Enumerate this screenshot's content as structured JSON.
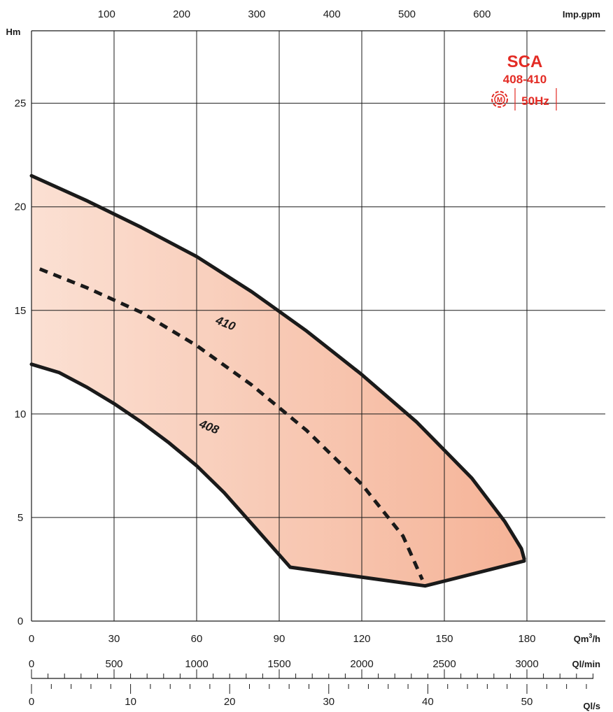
{
  "chart_data": {
    "type": "area",
    "ylabel": "Hm",
    "ylim": [
      0,
      28.5
    ],
    "yticks": [
      0,
      5,
      10,
      15,
      20,
      25
    ],
    "xlabel": "Qm³/h",
    "xlim": [
      0,
      210
    ],
    "xticks": [
      0,
      30,
      60,
      90,
      120,
      150,
      180
    ],
    "top_axis": {
      "label": "Imp.gpm",
      "ticks": [
        100,
        200,
        300,
        400,
        500,
        600
      ]
    },
    "lower_axes": [
      {
        "label": "Ql/min",
        "ticks": [
          0,
          500,
          1000,
          1500,
          2000,
          2500,
          3000
        ]
      },
      {
        "label": "Ql/s",
        "ticks": [
          0,
          10,
          20,
          30,
          40,
          50
        ]
      }
    ],
    "grid": true,
    "series": [
      {
        "name": "410",
        "style": "solid",
        "x": [
          0,
          20,
          40,
          60,
          80,
          100,
          120,
          140,
          160,
          172,
          178,
          179
        ],
        "y": [
          21.5,
          20.3,
          19.0,
          17.6,
          15.9,
          14.0,
          11.9,
          9.6,
          6.9,
          4.8,
          3.5,
          3.0
        ]
      },
      {
        "name": "",
        "style": "dashed",
        "x": [
          3,
          20,
          40,
          60,
          80,
          100,
          120,
          135,
          142
        ],
        "y": [
          17.0,
          16.1,
          14.9,
          13.3,
          11.4,
          9.2,
          6.6,
          4.1,
          2.0
        ]
      },
      {
        "name": "408",
        "style": "solid",
        "x": [
          0,
          10,
          20,
          30,
          40,
          50,
          60,
          70,
          80,
          94
        ],
        "y": [
          12.4,
          12.0,
          11.3,
          10.5,
          9.6,
          8.6,
          7.5,
          6.2,
          4.7,
          2.6
        ]
      },
      {
        "name": "",
        "style": "solid",
        "x": [
          94,
          143,
          179
        ],
        "y": [
          2.6,
          1.7,
          2.9
        ]
      }
    ],
    "curve_labels": [
      {
        "text": "410",
        "x": 70,
        "y": 14.2,
        "rotation": 22
      },
      {
        "text": "408",
        "x": 64,
        "y": 9.2,
        "rotation": 22
      }
    ],
    "fill_gradient": [
      "#fbe0d3",
      "#f5b397"
    ],
    "curve_color": "#1a1a1a"
  },
  "brand": {
    "name": "SCA",
    "models": "408-410",
    "frequency": "50Hz",
    "motor_symbol": "M",
    "color": "#e32b24"
  }
}
